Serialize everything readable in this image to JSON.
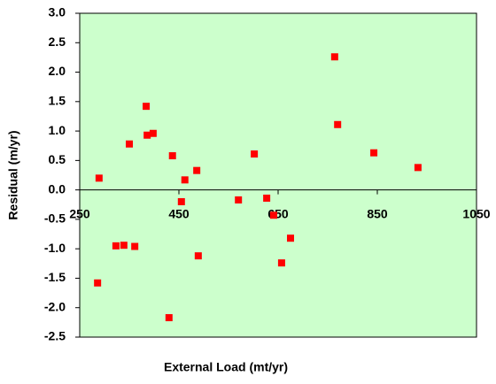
{
  "chart_data": {
    "type": "scatter",
    "x_label": "External Load (mt/yr)",
    "y_label": "Residual (m/yr)",
    "series": [
      {
        "color": "#ff0000",
        "x": [
          289,
          286,
          323,
          339,
          350,
          361,
          384,
          386,
          398,
          430,
          437,
          455,
          462,
          486,
          489,
          570,
          602,
          627,
          641,
          657,
          675,
          764,
          770,
          843,
          932
        ],
        "values": [
          0.2,
          -1.58,
          -0.95,
          -0.94,
          0.78,
          -0.96,
          1.42,
          0.93,
          0.96,
          -2.17,
          0.58,
          -0.2,
          0.17,
          0.33,
          -1.12,
          -0.17,
          0.61,
          -0.14,
          -0.43,
          -1.24,
          -0.82,
          2.26,
          1.11,
          0.63,
          0.38
        ]
      }
    ],
    "xlim": [
      250,
      1050
    ],
    "xticks": [
      250,
      450,
      650,
      850,
      1050
    ],
    "ylim": [
      -2.5,
      3.0
    ],
    "yticks": [
      -2.5,
      {
        "value": -2,
        "label": "-2.0"
      },
      -1.5,
      {
        "value": -1,
        "label": "-1.0"
      },
      -0.5,
      {
        "value": 0,
        "label": "0.0"
      },
      0.5,
      {
        "value": 1,
        "label": "1.0"
      },
      1.5,
      {
        "value": 2,
        "label": "2.0"
      },
      2.5,
      {
        "value": 3,
        "label": "3.0"
      }
    ],
    "plot_background": "#ccffcc",
    "grid": false
  }
}
